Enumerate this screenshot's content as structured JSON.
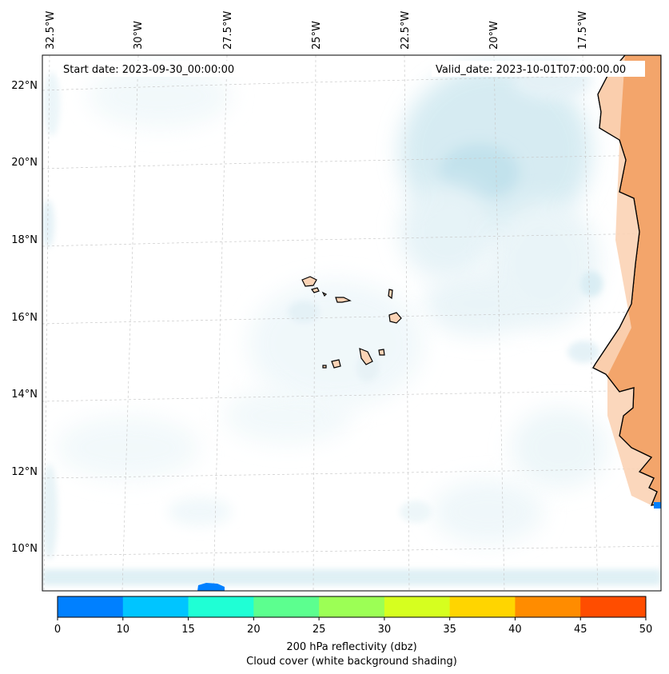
{
  "map": {
    "start_date": "Start date: 2023-09-30_00:00:00",
    "valid_date": "Valid_date: 2023-10-01T07:00:00.00",
    "longitude_labels": [
      "32.5°W",
      "30°W",
      "27.5°W",
      "25°W",
      "22.5°W",
      "20°W",
      "17.5°W"
    ],
    "latitude_labels": [
      "22°N",
      "20°N",
      "18°N",
      "16°N",
      "14°N",
      "12°N",
      "10°N"
    ],
    "land_colors": {
      "coast": "#f3a56b",
      "islands": "#fbd3b5"
    },
    "cloud_color": "#cfe8f0"
  },
  "colorbar": {
    "ticks": [
      "0",
      "10",
      "15",
      "20",
      "25",
      "30",
      "35",
      "40",
      "45",
      "50"
    ],
    "colors": [
      "#0080ff",
      "#00c5ff",
      "#1fffd5",
      "#5cff8f",
      "#9cff55",
      "#d6ff1f",
      "#ffd500",
      "#ff8c00",
      "#ff4d00"
    ],
    "label_line1": "200 hPa reflectivity (dbz)",
    "label_line2": "Cloud cover (white background shading)"
  }
}
